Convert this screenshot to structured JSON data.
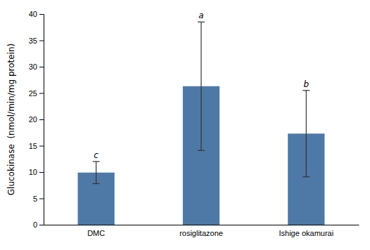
{
  "chart_data": {
    "type": "bar",
    "ylabel": "Glucokinase  (nmol/min/mg protein)",
    "categories": [
      "DMC",
      "rosiglitazone",
      "Ishige okamurai"
    ],
    "values": [
      9.9,
      26.3,
      17.3
    ],
    "errors": [
      2.1,
      12.2,
      8.2
    ],
    "annotations": [
      "c",
      "a",
      "b"
    ],
    "ylim": [
      0,
      40
    ],
    "yticks": [
      0,
      5,
      10,
      15,
      20,
      25,
      30,
      35,
      40
    ],
    "grid": false
  }
}
